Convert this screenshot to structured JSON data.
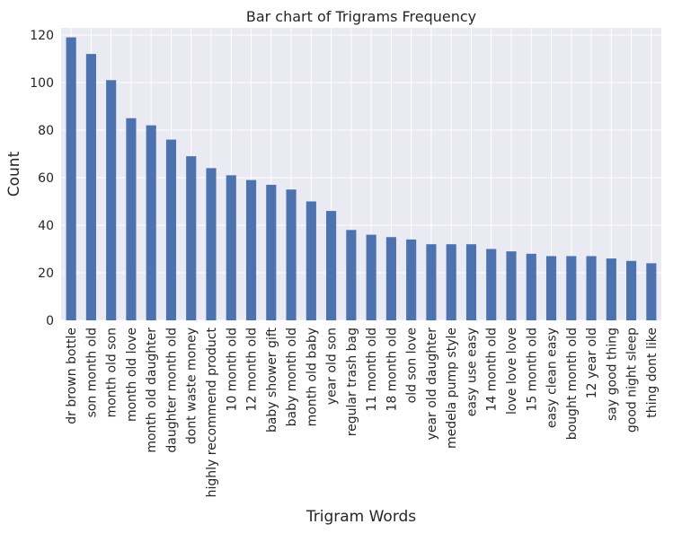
{
  "chart_data": {
    "type": "bar",
    "title": "Bar chart of Trigrams Frequency",
    "xlabel": "Trigram Words",
    "ylabel": "Count",
    "ylim": [
      0,
      123
    ],
    "yticks": [
      0,
      20,
      40,
      60,
      80,
      100,
      120
    ],
    "grid": true,
    "legend": "none",
    "bar_color": "#4c72b0",
    "background_color": "#eaeaf2",
    "grid_color": "#ffffff",
    "categories": [
      "dr brown bottle",
      "son month old",
      "month old son",
      "month old love",
      "month old daughter",
      "daughter month old",
      "dont waste money",
      "highly recommend product",
      "10 month old",
      "12 month old",
      "baby shower gift",
      "baby month old",
      "month old baby",
      "year old son",
      "regular trash bag",
      "11 month old",
      "18 month old",
      "old son love",
      "year old daughter",
      "medela pump style",
      "easy use easy",
      "14 month old",
      "love love love",
      "15 month old",
      "easy clean easy",
      "bought month old",
      "12 year old",
      "say good thing",
      "good night sleep",
      "thing dont like"
    ],
    "values": [
      119,
      112,
      101,
      85,
      82,
      76,
      69,
      64,
      61,
      59,
      57,
      55,
      50,
      46,
      38,
      36,
      35,
      34,
      32,
      32,
      32,
      30,
      29,
      28,
      27,
      27,
      27,
      26,
      25,
      24
    ]
  }
}
